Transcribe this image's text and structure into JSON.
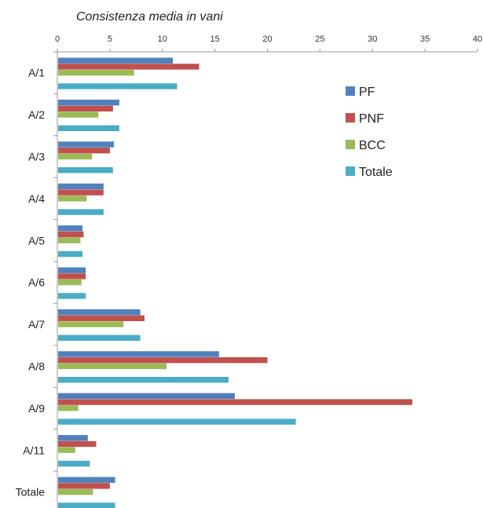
{
  "chart_data": {
    "type": "bar",
    "orientation": "horizontal",
    "title": "Consistenza media in vani",
    "xlim": [
      0,
      40
    ],
    "xticks": [
      0,
      5,
      10,
      15,
      20,
      25,
      30,
      35,
      40
    ],
    "categories": [
      "A/1",
      "A/2",
      "A/3",
      "A/4",
      "A/5",
      "A/6",
      "A/7",
      "A/8",
      "A/9",
      "A/11",
      "Totale"
    ],
    "series": [
      {
        "name": "PF",
        "color": "#4F81BD",
        "values": [
          11.0,
          5.9,
          5.4,
          4.4,
          2.4,
          2.7,
          7.9,
          15.4,
          16.9,
          2.9,
          5.5
        ]
      },
      {
        "name": "PNF",
        "color": "#C0504D",
        "values": [
          13.5,
          5.3,
          5.0,
          4.4,
          2.5,
          2.7,
          8.3,
          20.0,
          33.8,
          3.7,
          5.0
        ]
      },
      {
        "name": "BCC",
        "color": "#9BBB59",
        "values": [
          7.3,
          3.9,
          3.3,
          2.8,
          2.2,
          2.3,
          6.3,
          10.4,
          2.0,
          1.7,
          3.4
        ]
      },
      {
        "name": "Totale",
        "color": "#4BACC6",
        "values": [
          11.4,
          5.9,
          5.3,
          4.4,
          2.4,
          2.7,
          7.9,
          16.3,
          22.7,
          3.1,
          5.5
        ]
      }
    ],
    "legend_position": "right",
    "grid": false
  }
}
